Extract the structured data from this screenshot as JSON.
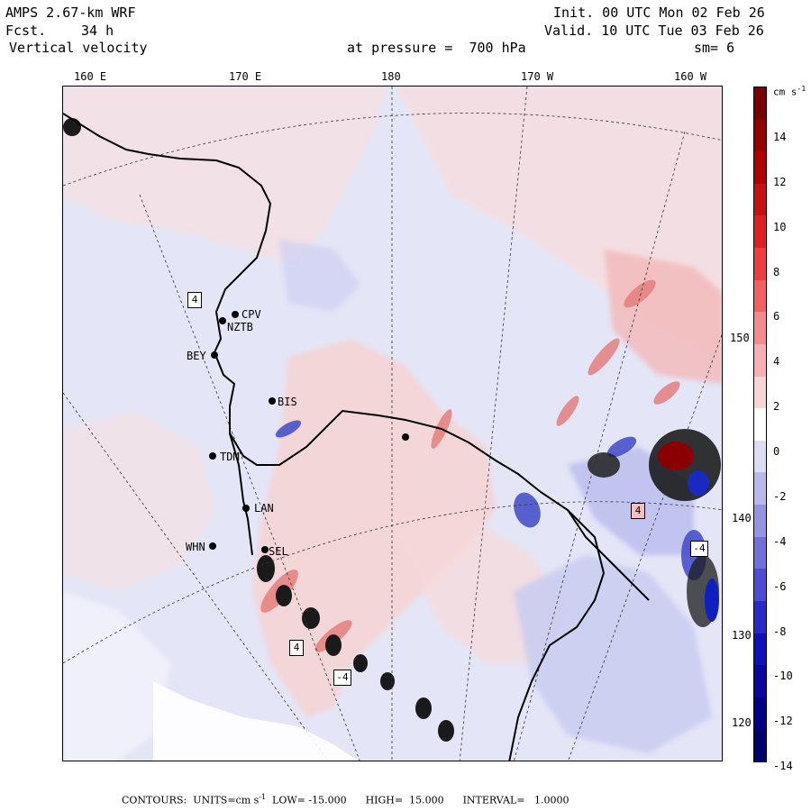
{
  "header": {
    "model": "AMPS 2.67-km WRF",
    "fcst_label": "Fcst.",
    "fcst_value": "34 h",
    "field": "Vertical velocity",
    "pressure_text": "at pressure =  700 hPa",
    "init": "Init. 00 UTC Mon 02 Feb 26",
    "valid": "Valid. 10 UTC Tue 03 Feb 26",
    "smooth": "sm= 6"
  },
  "lon_labels": [
    "160 E",
    "170 E",
    "180",
    "170 W",
    "160 W"
  ],
  "lat_labels": [
    "150 W",
    "140 W",
    "130 W",
    "120 W"
  ],
  "stations": [
    "CPV",
    "NZTB",
    "BEY",
    "BIS",
    "TDM",
    "LAN",
    "WHN",
    "SEL"
  ],
  "contour_labels": [
    "4",
    "4",
    "4",
    "-4",
    "-4"
  ],
  "colorbar": {
    "units": "cm s",
    "units_exp": "-1",
    "ticks": [
      "14",
      "12",
      "10",
      "8",
      "6",
      "4",
      "2",
      "0",
      "-2",
      "-4",
      "-6",
      "-8",
      "-10",
      "-12",
      "-14"
    ],
    "colors": [
      "#7a0000",
      "#960000",
      "#b00000",
      "#c81010",
      "#e02020",
      "#f03c3c",
      "#f46060",
      "#f68a8a",
      "#f7b0b0",
      "#f9d4d4",
      "#ffffff",
      "#dcdcf4",
      "#b8b8ec",
      "#9494e4",
      "#7070dc",
      "#4c4cd4",
      "#2828cc",
      "#1010b8",
      "#0808a0",
      "#000088",
      "#00006c"
    ]
  },
  "footer": {
    "text": "CONTOURS:  UNITS=cm s",
    "exp": "-1",
    "rest": "  LOW= -15.000      HIGH=  15.000      INTERVAL=   1.0000"
  }
}
